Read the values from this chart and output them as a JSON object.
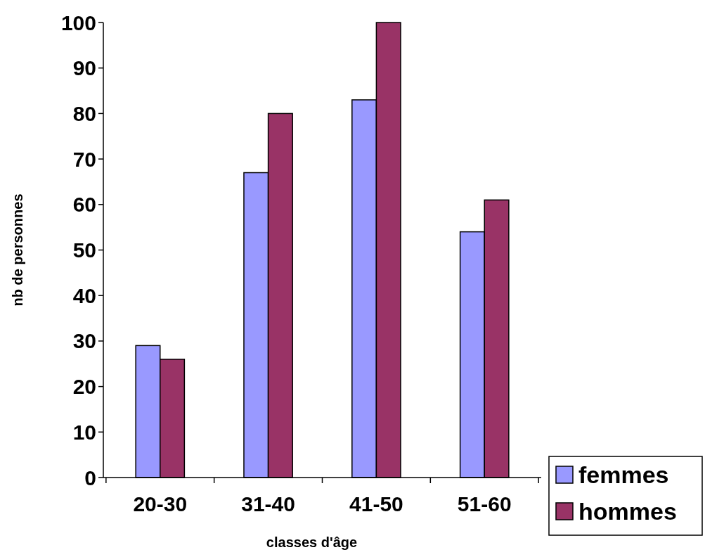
{
  "chart_data": {
    "type": "bar",
    "xlabel": "classes d'âge",
    "ylabel": "nb de personnes",
    "categories": [
      "20-30",
      "31-40",
      "41-50",
      "51-60"
    ],
    "series": [
      {
        "name": "femmes",
        "color": "#9999ff",
        "values": [
          29,
          67,
          83,
          54
        ]
      },
      {
        "name": "hommes",
        "color": "#993366",
        "values": [
          26,
          80,
          100,
          61
        ]
      }
    ],
    "ylim": [
      0,
      100
    ],
    "yticks": [
      0,
      10,
      20,
      30,
      40,
      50,
      60,
      70,
      80,
      90,
      100
    ],
    "grid": false,
    "legend": "bottom right"
  }
}
